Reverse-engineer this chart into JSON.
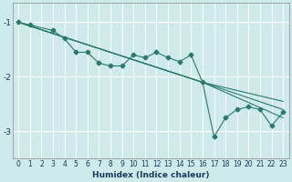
{
  "bg_color": "#ceeaea",
  "grid_color": "#ffffff",
  "line_color": "#2a7a6a",
  "xlabel": "Humidex (Indice chaleur)",
  "xlim": [
    -0.5,
    23.5
  ],
  "ylim": [
    -3.5,
    -0.65
  ],
  "yticks": [
    -3,
    -2,
    -1
  ],
  "xticks": [
    0,
    1,
    2,
    3,
    4,
    5,
    6,
    7,
    8,
    9,
    10,
    11,
    12,
    13,
    14,
    15,
    16,
    17,
    18,
    19,
    20,
    21,
    22,
    23
  ],
  "wavy_x": [
    0,
    1,
    3,
    4,
    5,
    6,
    7,
    8,
    9,
    10,
    11,
    12,
    13,
    14,
    15,
    16,
    17,
    18,
    19,
    20,
    21,
    22,
    23
  ],
  "wavy_y": [
    -1.0,
    -1.05,
    -1.15,
    -1.3,
    -1.55,
    -1.55,
    -1.75,
    -1.8,
    -1.8,
    -1.6,
    -1.65,
    -1.55,
    -1.65,
    -1.72,
    -1.6,
    -2.1,
    -3.1,
    -2.75,
    -2.6,
    -2.55,
    -2.6,
    -2.9,
    -2.65
  ],
  "line1_x": [
    0,
    16,
    23
  ],
  "line1_y": [
    -1.0,
    -2.1,
    -2.45
  ],
  "line2_x": [
    0,
    16,
    23
  ],
  "line2_y": [
    -1.0,
    -2.1,
    -2.6
  ],
  "line3_x": [
    0,
    16,
    23
  ],
  "line3_y": [
    -1.0,
    -2.1,
    -2.75
  ],
  "tick_fontsize": 5.5,
  "xlabel_fontsize": 6.5,
  "xlabel_color": "#1a3a5a",
  "lw": 0.8,
  "ms": 2.5
}
